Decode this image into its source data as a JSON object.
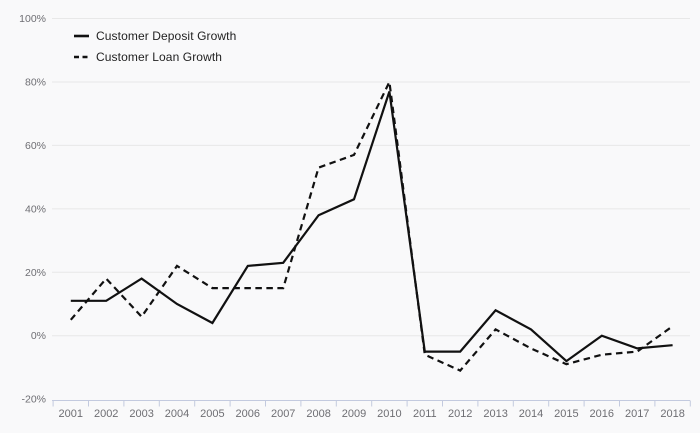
{
  "chart_data": {
    "type": "line",
    "title": "",
    "xlabel": "",
    "ylabel": "",
    "x": [
      "2001",
      "2002",
      "2003",
      "2004",
      "2005",
      "2006",
      "2007",
      "2008",
      "2009",
      "2010",
      "2011",
      "2012",
      "2013",
      "2014",
      "2015",
      "2016",
      "2017",
      "2018"
    ],
    "series": [
      {
        "name": "Customer Deposit Growth",
        "style": "solid",
        "values": [
          11,
          11,
          18,
          10,
          4,
          22,
          23,
          38,
          43,
          77,
          -5,
          -5,
          8,
          2,
          -8,
          0,
          -4,
          -3
        ]
      },
      {
        "name": "Customer Loan Growth",
        "style": "dashed",
        "values": [
          5,
          18,
          6,
          22,
          15,
          15,
          15,
          53,
          57,
          80,
          -6,
          -11,
          2,
          -4,
          -9,
          -6,
          -5,
          3
        ]
      }
    ],
    "yticks": [
      {
        "value": 100,
        "label": "100%"
      },
      {
        "value": 80,
        "label": "80%"
      },
      {
        "value": 60,
        "label": "60%"
      },
      {
        "value": 40,
        "label": "40%"
      },
      {
        "value": 20,
        "label": "20%"
      },
      {
        "value": 0,
        "label": "0%"
      },
      {
        "value": -20,
        "label": "-20%"
      }
    ],
    "ylim": [
      -20,
      100
    ],
    "grid": true,
    "legend_position": "top-left",
    "colors": {
      "line": "#111111",
      "grid": "#e8e8e8",
      "axis": "#c3cadf",
      "tick_label": "#6e6e73",
      "legend_text": "#1f1f1f",
      "background": "#f9f9fa"
    }
  }
}
